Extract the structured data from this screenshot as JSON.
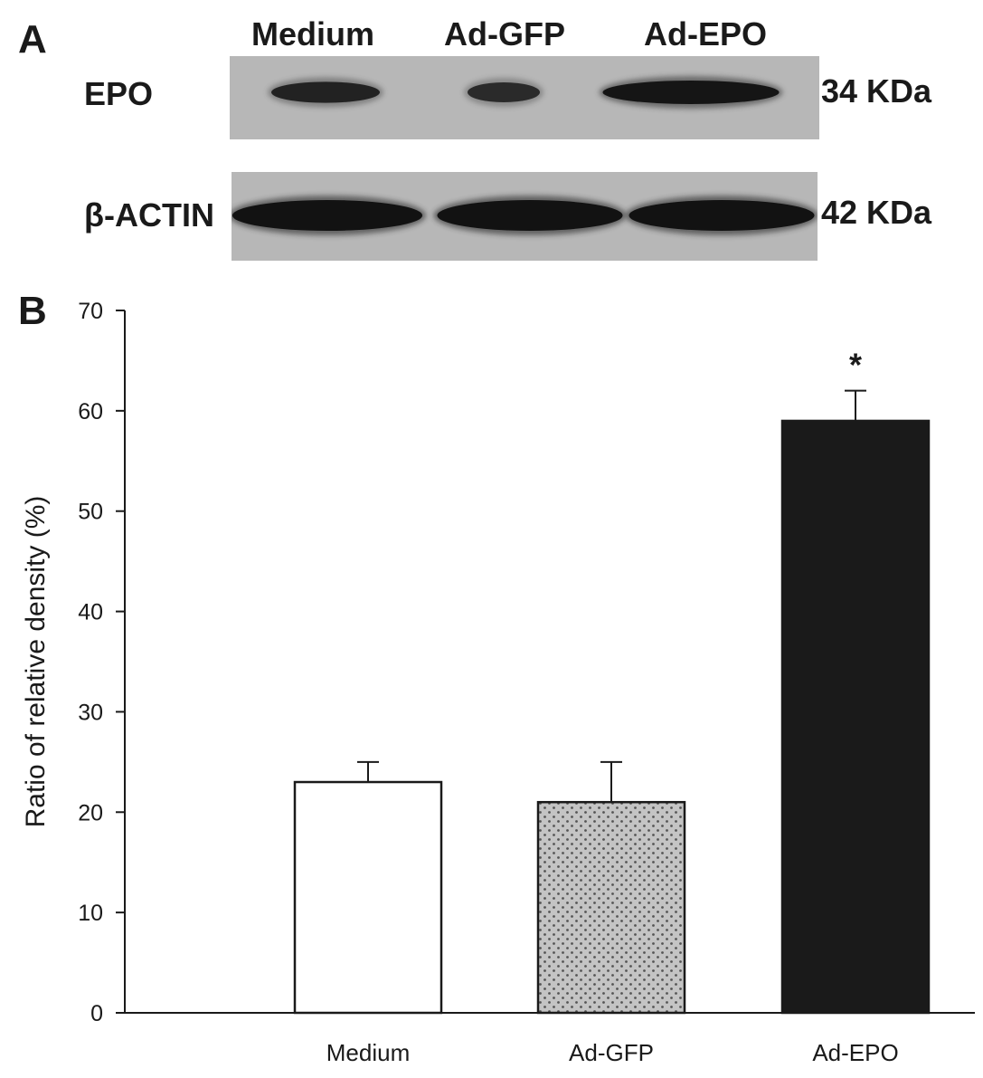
{
  "panel_a": {
    "label": "A",
    "lanes": [
      "Medium",
      "Ad-GFP",
      "Ad-EPO"
    ],
    "blots": [
      {
        "name": "EPO",
        "size": "34 KDa",
        "band_intensity": [
          0.72,
          0.6,
          1.0
        ]
      },
      {
        "name": "β-ACTIN",
        "size": "42 KDa",
        "band_intensity": [
          1.0,
          1.0,
          1.0
        ]
      }
    ]
  },
  "panel_b": {
    "label": "B"
  },
  "chart_data": {
    "type": "bar",
    "title": "",
    "xlabel": "",
    "ylabel": "Ratio of relative density (%)",
    "categories": [
      "Medium",
      "Ad-GFP",
      "Ad-EPO"
    ],
    "values": [
      23,
      21,
      59
    ],
    "errors": [
      2,
      4,
      3
    ],
    "significance": [
      "",
      "",
      "*"
    ],
    "bar_fills": [
      "white",
      "dotted gray",
      "black"
    ],
    "ylim": [
      0,
      70
    ],
    "yticks": [
      0,
      10,
      20,
      30,
      40,
      50,
      60,
      70
    ],
    "grid": false,
    "legend": "none"
  }
}
